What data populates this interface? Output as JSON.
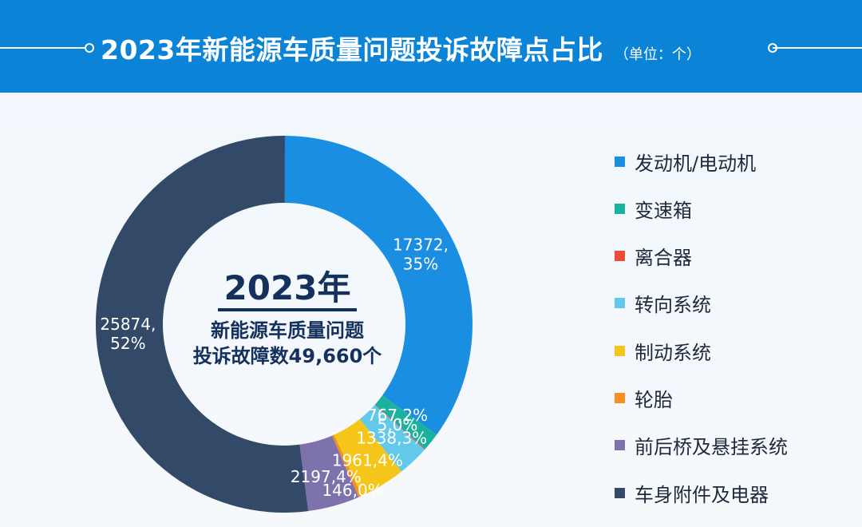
{
  "header": {
    "title": "2023年新能源车质量问题投诉故障点占比",
    "unit": "（单位：个）"
  },
  "center": {
    "year": "2023年",
    "line1": "新能源车质量问题",
    "line2": "投诉故障数49,660个"
  },
  "chart_data": {
    "type": "pie",
    "donut": true,
    "title": "2023年新能源车质量问题投诉故障点占比",
    "unit": "个",
    "total": 49660,
    "legend_position": "right",
    "slices": [
      {
        "name": "发动机/电动机",
        "value": 17372,
        "label": "17372,\n35%",
        "color": "#1a8ee0"
      },
      {
        "name": "变速箱",
        "value": 767,
        "label": "767,2%",
        "color": "#1ab29c"
      },
      {
        "name": "离合器",
        "value": 5,
        "label": "5,0%",
        "color": "#f04b38"
      },
      {
        "name": "转向系统",
        "value": 1338,
        "label": "1338,3%",
        "color": "#62c9ea"
      },
      {
        "name": "制动系统",
        "value": 1961,
        "label": "1961,4%",
        "color": "#f5c619"
      },
      {
        "name": "轮胎",
        "value": 146,
        "label": "146,0%",
        "color": "#f4901e"
      },
      {
        "name": "前后桥及悬挂系统",
        "value": 2197,
        "label": "2197,4%",
        "color": "#7e72ad"
      },
      {
        "name": "车身附件及电器",
        "value": 25874,
        "label": "25874,\n52%",
        "color": "#324a68"
      }
    ]
  }
}
